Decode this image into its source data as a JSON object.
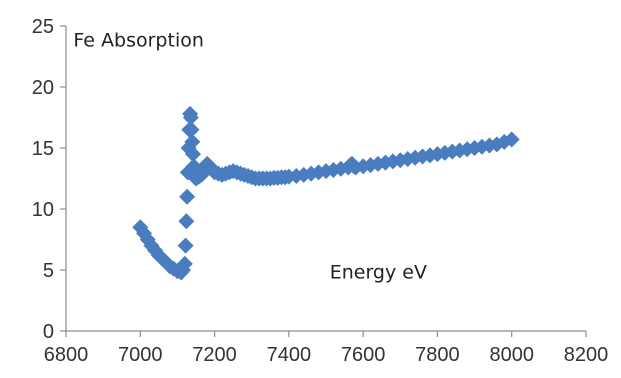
{
  "chart_data": {
    "type": "scatter",
    "title": "",
    "xlabel": "",
    "ylabel": "",
    "xlim": [
      6800,
      8200
    ],
    "ylim": [
      0,
      25
    ],
    "xticks": [
      6800,
      7000,
      7200,
      7400,
      7600,
      7800,
      8000,
      8200
    ],
    "yticks": [
      0,
      5,
      10,
      15,
      20,
      25
    ],
    "grid": false,
    "legend": "none",
    "annotations": [
      {
        "text": "Fe Absorption",
        "x": 6820,
        "y": 23.3
      },
      {
        "text": "Energy eV",
        "x": 7510,
        "y": 4.3
      }
    ],
    "marker_color": "#4a7dbf",
    "series": [
      {
        "marker": "diamond",
        "x": [
          7000,
          7010,
          7020,
          7030,
          7040,
          7050,
          7060,
          7070,
          7080,
          7090,
          7100,
          7110,
          7115,
          7120,
          7122,
          7124,
          7126,
          7128,
          7130,
          7132,
          7134,
          7136,
          7138,
          7140,
          7142,
          7144,
          7146,
          7148,
          7150,
          7155,
          7160,
          7165,
          7170,
          7175,
          7180,
          7190,
          7200,
          7210,
          7220,
          7230,
          7240,
          7250,
          7260,
          7270,
          7280,
          7290,
          7300,
          7310,
          7320,
          7330,
          7340,
          7350,
          7360,
          7370,
          7380,
          7390,
          7400,
          7420,
          7440,
          7460,
          7480,
          7500,
          7520,
          7540,
          7560,
          7565,
          7570,
          7575,
          7580,
          7600,
          7620,
          7640,
          7660,
          7680,
          7700,
          7720,
          7740,
          7760,
          7780,
          7800,
          7820,
          7840,
          7860,
          7880,
          7900,
          7920,
          7940,
          7960,
          7980,
          8000
        ],
        "y": [
          8.5,
          8.0,
          7.5,
          7.0,
          6.6,
          6.2,
          5.9,
          5.6,
          5.3,
          5.1,
          4.9,
          4.8,
          5.0,
          5.5,
          7.0,
          9.0,
          11.0,
          13.0,
          15.0,
          16.5,
          17.8,
          17.5,
          16.5,
          15.5,
          14.5,
          13.5,
          13.0,
          12.6,
          12.5,
          12.6,
          12.7,
          12.8,
          13.0,
          13.4,
          13.7,
          13.4,
          13.0,
          12.9,
          12.8,
          12.9,
          13.0,
          13.1,
          13.0,
          12.9,
          12.8,
          12.7,
          12.6,
          12.5,
          12.5,
          12.5,
          12.5,
          12.5,
          12.55,
          12.55,
          12.6,
          12.6,
          12.65,
          12.7,
          12.8,
          12.9,
          13.0,
          13.1,
          13.2,
          13.3,
          13.4,
          13.6,
          13.7,
          13.5,
          13.4,
          13.5,
          13.6,
          13.7,
          13.8,
          13.9,
          14.0,
          14.1,
          14.2,
          14.3,
          14.4,
          14.5,
          14.6,
          14.7,
          14.8,
          14.9,
          15.0,
          15.1,
          15.2,
          15.3,
          15.5,
          15.7
        ]
      }
    ]
  }
}
